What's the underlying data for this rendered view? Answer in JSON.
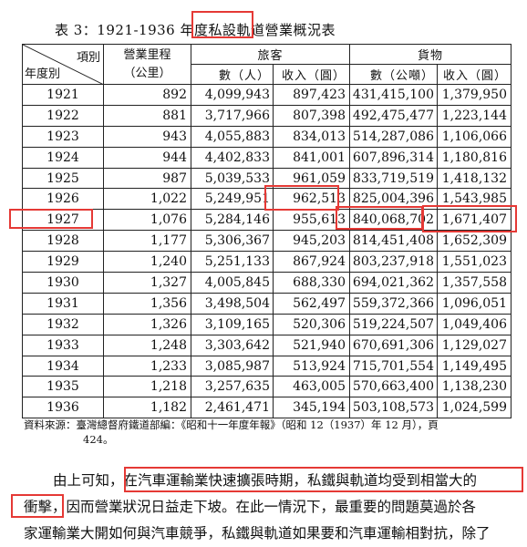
{
  "title": "表 3：1921-1936 年度私設軌道營業概況表",
  "table": {
    "corner_top": "項別",
    "corner_bottom": "年度別",
    "col_length_line1": "營業里程",
    "col_length_line2": "（公里）",
    "group_passenger": "旅客",
    "group_freight": "貨物",
    "sub_headers": [
      "數（人）",
      "收入（圓）",
      "數（公噸）",
      "收入（圓）"
    ],
    "rows": [
      [
        "1921",
        "892",
        "4,099,943",
        "897,423",
        "431,415,100",
        "1,379,950"
      ],
      [
        "1922",
        "881",
        "3,717,966",
        "807,398",
        "492,475,477",
        "1,223,144"
      ],
      [
        "1923",
        "943",
        "4,055,883",
        "834,013",
        "514,287,086",
        "1,106,066"
      ],
      [
        "1924",
        "944",
        "4,402,833",
        "841,001",
        "607,896,314",
        "1,180,816"
      ],
      [
        "1925",
        "987",
        "5,039,533",
        "961,059",
        "833,719,519",
        "1,418,132"
      ],
      [
        "1926",
        "1,022",
        "5,249,951",
        "962,513",
        "825,004,396",
        "1,543,985"
      ],
      [
        "1927",
        "1,076",
        "5,284,146",
        "955,613",
        "840,068,702",
        "1,671,407"
      ],
      [
        "1928",
        "1,177",
        "5,306,367",
        "945,203",
        "814,451,408",
        "1,652,309"
      ],
      [
        "1929",
        "1,240",
        "5,251,133",
        "867,924",
        "803,237,918",
        "1,551,023"
      ],
      [
        "1930",
        "1,327",
        "4,005,845",
        "688,330",
        "694,021,362",
        "1,357,558"
      ],
      [
        "1931",
        "1,356",
        "3,498,504",
        "562,497",
        "559,372,366",
        "1,096,051"
      ],
      [
        "1932",
        "1,326",
        "3,109,165",
        "520,306",
        "519,224,507",
        "1,049,406"
      ],
      [
        "1933",
        "1,248",
        "3,303,642",
        "521,940",
        "670,691,306",
        "1,129,027"
      ],
      [
        "1934",
        "1,233",
        "3,085,987",
        "513,924",
        "715,701,554",
        "1,149,495"
      ],
      [
        "1935",
        "1,218",
        "3,257,635",
        "463,005",
        "570,663,400",
        "1,138,230"
      ],
      [
        "1936",
        "1,182",
        "2,461,471",
        "345,194",
        "503,108,573",
        "1,024,599"
      ]
    ]
  },
  "source_line1": "資料來源：臺灣總督府鐵道部編：《昭和十一年度年報》（昭和 12（1937）年 12 月），頁",
  "source_line2": "424。",
  "paragraph": {
    "line1": "由上可知，在汽車運輸業快速擴張時期，私鐵與軌道均受到相當大的",
    "line2": "衝擊，因而營業狀況日益走下坡。在此一情況下，最重要的問題莫過於各",
    "line3": "家運輸業大開如何與汽車競爭，私鐵與軌道如果要和汽車運輸相對抗，除了"
  },
  "highlight_color": "#e53935"
}
